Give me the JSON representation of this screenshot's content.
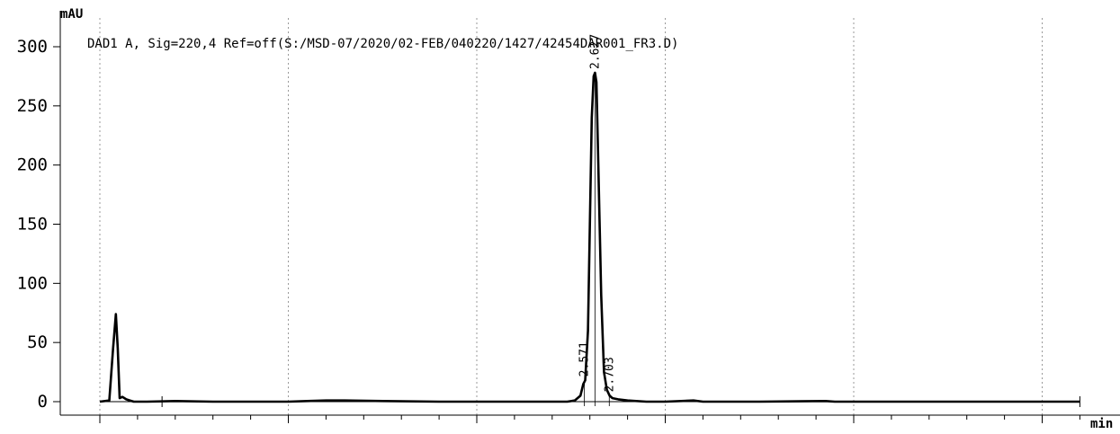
{
  "chart_data": {
    "type": "line",
    "signal_label": "DAD1 A, Sig=220,4 Ref=off(S:/MSD-07/2020/02-FEB/040220/1427/42454DAR001_FR3.D)",
    "y_unit": "mAU",
    "x_unit": "min",
    "ylim": [
      -10,
      315
    ],
    "xlim": [
      -0.2,
      5.3
    ],
    "y_ticks": [
      "0",
      "50",
      "100",
      "150",
      "200",
      "250",
      "300"
    ],
    "x_grid": [
      0,
      1,
      2,
      3,
      4,
      5
    ],
    "grid": "x-dotted",
    "series": [
      {
        "x": [
          0.0,
          0.05,
          0.07,
          0.085,
          0.095,
          0.105,
          0.12,
          0.14,
          0.16,
          0.18,
          0.2,
          0.25,
          0.4,
          0.6,
          0.8,
          1.0,
          1.1,
          1.2,
          1.3,
          1.5,
          1.8,
          2.0,
          2.2,
          2.35,
          2.42,
          2.48,
          2.52,
          2.55,
          2.565,
          2.575,
          2.59,
          2.6,
          2.61,
          2.62,
          2.627,
          2.635,
          2.645,
          2.66,
          2.675,
          2.69,
          2.705,
          2.72,
          2.75,
          2.8,
          2.9,
          3.0,
          3.15,
          3.2,
          3.3,
          3.5,
          3.85,
          3.9,
          4.0,
          4.2,
          4.5,
          5.0,
          5.2
        ],
        "y": [
          0,
          1,
          45,
          74,
          45,
          3,
          4,
          2,
          1,
          0,
          0,
          0,
          0.5,
          0,
          0,
          0,
          0.5,
          1,
          1,
          0.5,
          0,
          0,
          0,
          0,
          0,
          0,
          1,
          5,
          15,
          18,
          60,
          150,
          240,
          275,
          278,
          270,
          200,
          90,
          25,
          10,
          5,
          3,
          2,
          1,
          0,
          0,
          1,
          0,
          0,
          0,
          0.5,
          0,
          0,
          0,
          0,
          0,
          0
        ]
      }
    ],
    "peak_labels": [
      {
        "x": 2.571,
        "y": 18,
        "label": "2.571"
      },
      {
        "x": 2.627,
        "y": 278,
        "label": "2.627"
      },
      {
        "x": 2.703,
        "y": 5,
        "label": "2.703"
      }
    ]
  }
}
